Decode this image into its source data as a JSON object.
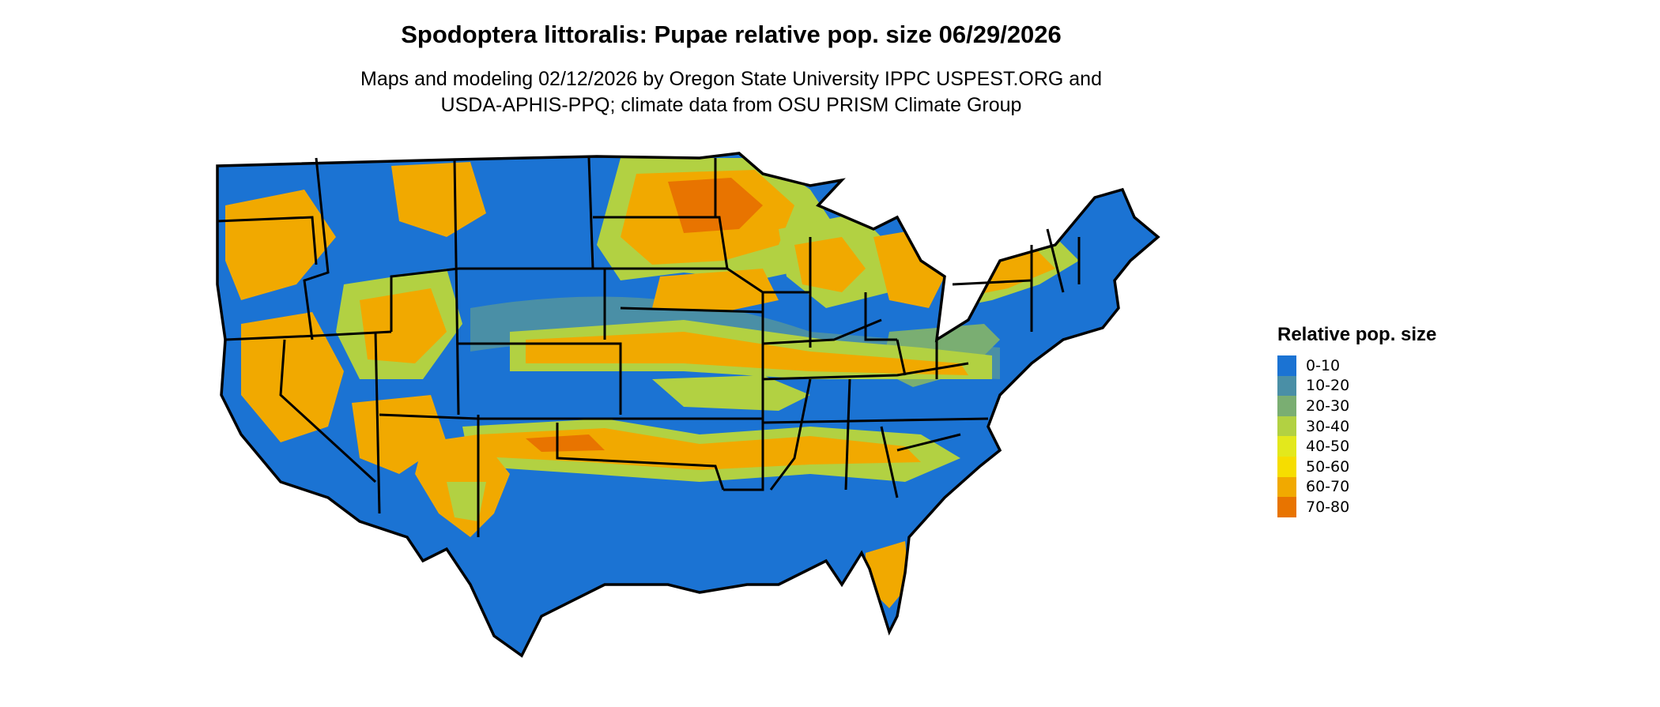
{
  "title": "Spodoptera littoralis: Pupae relative pop. size 06/29/2026",
  "subtitle_line1": "Maps and modeling 02/12/2026 by Oregon State University IPPC USPEST.ORG and",
  "subtitle_line2": "USDA-APHIS-PPQ; climate data from OSU PRISM Climate Group",
  "map": {
    "region": "contiguous-united-states",
    "boundaries": "state-borders"
  },
  "legend": {
    "title": "Relative pop. size",
    "items": [
      {
        "label": "0-10",
        "color": "#1b73d3"
      },
      {
        "label": "10-20",
        "color": "#4a8fa6"
      },
      {
        "label": "20-30",
        "color": "#7aae72"
      },
      {
        "label": "30-40",
        "color": "#b2d142"
      },
      {
        "label": "40-50",
        "color": "#e3e81c"
      },
      {
        "label": "50-60",
        "color": "#f6dd00"
      },
      {
        "label": "60-70",
        "color": "#f1a900"
      },
      {
        "label": "70-80",
        "color": "#e87400"
      }
    ]
  }
}
